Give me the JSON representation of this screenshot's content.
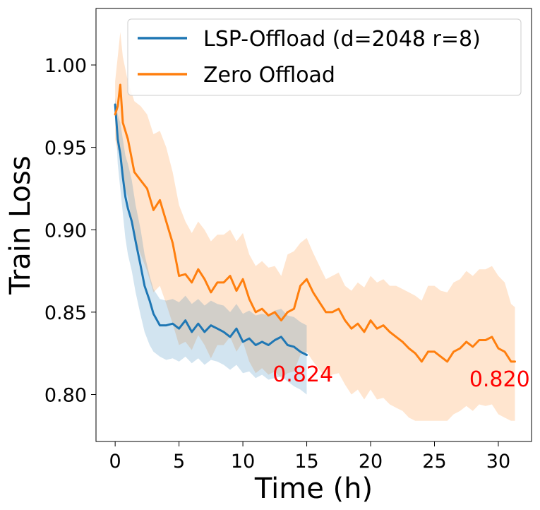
{
  "chart_data": {
    "type": "line",
    "title": "",
    "xlabel": "Time (h)",
    "ylabel": "Train Loss",
    "xlim": [
      -1.5,
      32.6
    ],
    "ylim": [
      0.7715,
      1.0343
    ],
    "xticks": [
      0,
      5,
      10,
      15,
      20,
      25,
      30
    ],
    "yticks": [
      0.8,
      0.85,
      0.9,
      0.95,
      1.0
    ],
    "xtick_labels": [
      "0",
      "5",
      "10",
      "15",
      "20",
      "25",
      "30"
    ],
    "ytick_labels": [
      "0.80",
      "0.85",
      "0.90",
      "0.95",
      "1.00"
    ],
    "grid": false,
    "legend_position": "top-right",
    "series": [
      {
        "name": "LSP-Offload (d=2048 r=8)",
        "color": "#1f77b4",
        "x": [
          0.0,
          0.2,
          0.4,
          0.6,
          0.8,
          1.0,
          1.3,
          1.6,
          2.0,
          2.3,
          2.7,
          3.0,
          3.5,
          4.0,
          4.5,
          5.0,
          5.5,
          6.0,
          6.5,
          7.0,
          7.5,
          8.0,
          8.5,
          9.0,
          9.5,
          10.0,
          10.5,
          11.0,
          11.5,
          12.0,
          12.5,
          13.0,
          13.5,
          14.0,
          14.5,
          15.0
        ],
        "y": [
          0.976,
          0.955,
          0.946,
          0.932,
          0.92,
          0.913,
          0.905,
          0.893,
          0.878,
          0.866,
          0.857,
          0.849,
          0.842,
          0.842,
          0.843,
          0.84,
          0.845,
          0.838,
          0.843,
          0.838,
          0.842,
          0.84,
          0.838,
          0.835,
          0.84,
          0.832,
          0.834,
          0.83,
          0.832,
          0.83,
          0.833,
          0.835,
          0.83,
          0.829,
          0.826,
          0.824
        ],
        "upper": [
          0.98,
          0.97,
          0.965,
          0.955,
          0.945,
          0.94,
          0.93,
          0.915,
          0.9,
          0.885,
          0.872,
          0.864,
          0.858,
          0.857,
          0.858,
          0.856,
          0.86,
          0.855,
          0.858,
          0.854,
          0.857,
          0.855,
          0.854,
          0.85,
          0.855,
          0.849,
          0.851,
          0.848,
          0.849,
          0.848,
          0.851,
          0.852,
          0.848,
          0.847,
          0.844,
          0.842
        ],
        "lower": [
          0.972,
          0.94,
          0.925,
          0.91,
          0.895,
          0.885,
          0.875,
          0.862,
          0.848,
          0.838,
          0.83,
          0.826,
          0.823,
          0.821,
          0.822,
          0.82,
          0.823,
          0.819,
          0.822,
          0.818,
          0.821,
          0.82,
          0.818,
          0.815,
          0.818,
          0.813,
          0.814,
          0.81,
          0.812,
          0.809,
          0.81,
          0.811,
          0.808,
          0.805,
          0.803,
          0.8
        ]
      },
      {
        "name": "Zero Offload",
        "color": "#ff7f0e",
        "x": [
          0.0,
          0.2,
          0.4,
          0.6,
          1.0,
          1.5,
          2.0,
          2.5,
          3.0,
          3.5,
          4.0,
          4.5,
          5.0,
          5.5,
          6.0,
          6.5,
          7.0,
          7.5,
          8.0,
          8.5,
          9.0,
          9.5,
          10.0,
          10.5,
          11.0,
          11.5,
          12.0,
          12.5,
          13.0,
          13.5,
          14.0,
          14.5,
          15.0,
          15.5,
          16.0,
          16.5,
          17.0,
          17.5,
          18.0,
          18.5,
          19.0,
          19.5,
          20.0,
          20.5,
          21.0,
          21.5,
          22.0,
          22.5,
          23.0,
          23.5,
          24.0,
          24.5,
          25.0,
          25.5,
          26.0,
          26.5,
          27.0,
          27.5,
          28.0,
          28.5,
          29.0,
          29.5,
          30.0,
          30.5,
          31.0,
          31.3
        ],
        "y": [
          0.97,
          0.975,
          0.988,
          0.965,
          0.955,
          0.935,
          0.93,
          0.925,
          0.912,
          0.918,
          0.905,
          0.892,
          0.872,
          0.873,
          0.868,
          0.876,
          0.87,
          0.862,
          0.868,
          0.868,
          0.872,
          0.863,
          0.87,
          0.858,
          0.85,
          0.852,
          0.848,
          0.85,
          0.845,
          0.85,
          0.852,
          0.866,
          0.87,
          0.862,
          0.856,
          0.85,
          0.85,
          0.852,
          0.845,
          0.84,
          0.843,
          0.838,
          0.845,
          0.84,
          0.842,
          0.838,
          0.835,
          0.832,
          0.828,
          0.825,
          0.82,
          0.826,
          0.826,
          0.823,
          0.82,
          0.826,
          0.828,
          0.832,
          0.829,
          0.833,
          0.833,
          0.835,
          0.828,
          0.826,
          0.82,
          0.82
        ],
        "upper": [
          0.99,
          1.005,
          1.02,
          1.005,
          0.99,
          0.978,
          0.975,
          0.97,
          0.958,
          0.96,
          0.95,
          0.935,
          0.915,
          0.905,
          0.898,
          0.905,
          0.9,
          0.893,
          0.897,
          0.897,
          0.9,
          0.893,
          0.898,
          0.885,
          0.878,
          0.881,
          0.877,
          0.878,
          0.872,
          0.885,
          0.887,
          0.892,
          0.895,
          0.886,
          0.878,
          0.87,
          0.872,
          0.874,
          0.866,
          0.863,
          0.868,
          0.865,
          0.872,
          0.868,
          0.87,
          0.866,
          0.866,
          0.864,
          0.862,
          0.86,
          0.857,
          0.866,
          0.866,
          0.863,
          0.862,
          0.868,
          0.87,
          0.875,
          0.872,
          0.876,
          0.876,
          0.878,
          0.872,
          0.868,
          0.855,
          0.853
        ],
        "lower": [
          0.955,
          0.948,
          0.95,
          0.93,
          0.92,
          0.895,
          0.885,
          0.875,
          0.862,
          0.866,
          0.855,
          0.843,
          0.83,
          0.832,
          0.827,
          0.836,
          0.83,
          0.822,
          0.83,
          0.83,
          0.835,
          0.826,
          0.832,
          0.82,
          0.813,
          0.816,
          0.812,
          0.814,
          0.81,
          0.813,
          0.814,
          0.824,
          0.826,
          0.82,
          0.815,
          0.81,
          0.812,
          0.813,
          0.806,
          0.8,
          0.803,
          0.797,
          0.803,
          0.797,
          0.798,
          0.794,
          0.792,
          0.79,
          0.786,
          0.784,
          0.784,
          0.784,
          0.784,
          0.784,
          0.784,
          0.788,
          0.79,
          0.793,
          0.79,
          0.794,
          0.793,
          0.794,
          0.788,
          0.786,
          0.784,
          0.784
        ]
      }
    ],
    "annotations": [
      {
        "text": "0.824",
        "x": 14.7,
        "y": 0.808,
        "color": "#ff0000"
      },
      {
        "text": "0.820",
        "x": 30.1,
        "y": 0.805,
        "color": "#ff0000"
      }
    ]
  }
}
